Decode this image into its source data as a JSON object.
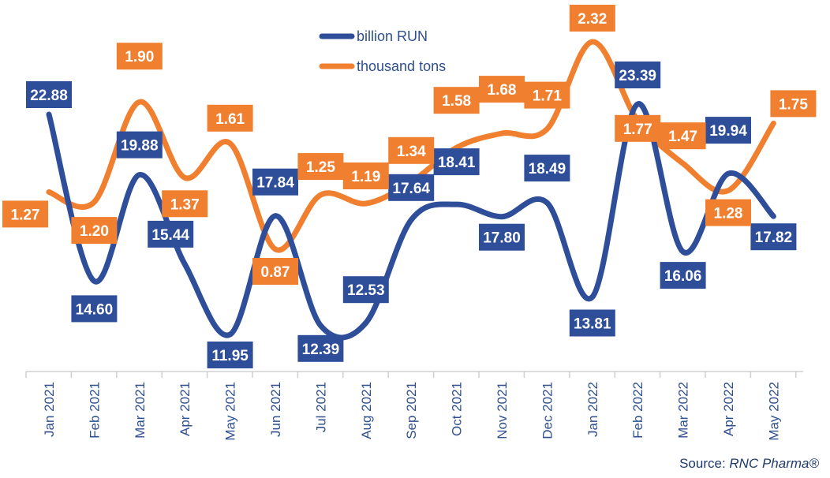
{
  "chart_data": {
    "type": "line",
    "categories": [
      "Jan 2021",
      "Feb 2021",
      "Mar 2021",
      "Apr 2021",
      "May 2021",
      "Jun 2021",
      "Jul 2021",
      "Aug 2021",
      "Sep 2021",
      "Oct 2021",
      "Nov 2021",
      "Dec 2021",
      "Jan 2022",
      "Feb 2022",
      "Mar 2022",
      "Apr 2022",
      "May 2022"
    ],
    "series": [
      {
        "name": "billion RUN",
        "color": "#2e4e9a",
        "values": [
          22.88,
          14.6,
          19.88,
          15.44,
          11.95,
          17.84,
          12.39,
          12.53,
          17.64,
          18.41,
          17.8,
          18.49,
          13.81,
          23.39,
          16.06,
          19.94,
          17.82
        ],
        "labels": [
          "22.88",
          "14.60",
          "19.88",
          "15.44",
          "11.95",
          "17.84",
          "12.39",
          "12.53",
          "17.64",
          "18.41",
          "17.80",
          "18.49",
          "13.81",
          "23.39",
          "16.06",
          "19.94",
          "17.82"
        ]
      },
      {
        "name": "thousand tons",
        "color": "#f08030",
        "values": [
          1.27,
          1.2,
          1.9,
          1.37,
          1.61,
          0.87,
          1.25,
          1.19,
          1.34,
          1.58,
          1.68,
          1.71,
          2.32,
          1.77,
          1.47,
          1.28,
          1.75
        ],
        "labels": [
          "1.27",
          "1.20",
          "1.90",
          "1.37",
          "1.61",
          "0.87",
          "1.25",
          "1.19",
          "1.34",
          "1.58",
          "1.68",
          "1.71",
          "2.32",
          "1.77",
          "1.47",
          "1.28",
          "1.75"
        ]
      }
    ],
    "legend_position": "top-center",
    "grid": false
  },
  "source": {
    "prefix": "Source: ",
    "brand": "RNC Pharma®"
  }
}
